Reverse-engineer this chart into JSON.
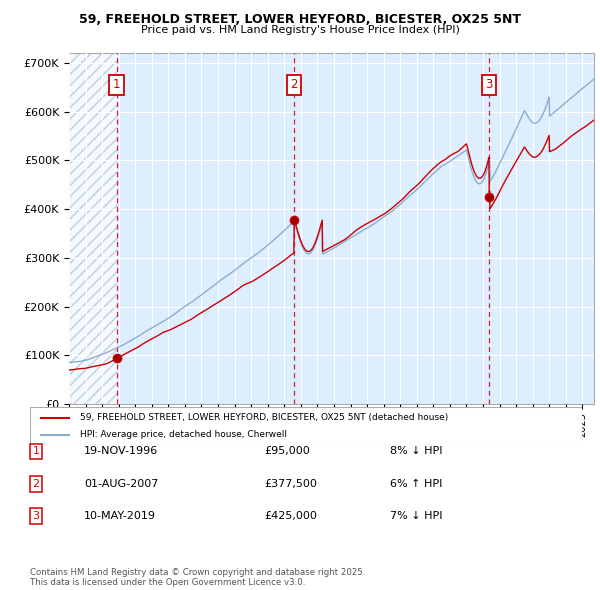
{
  "title_line1": "59, FREEHOLD STREET, LOWER HEYFORD, BICESTER, OX25 5NT",
  "title_line2": "Price paid vs. HM Land Registry's House Price Index (HPI)",
  "ylim": [
    0,
    720000
  ],
  "yticks": [
    0,
    100000,
    200000,
    300000,
    400000,
    500000,
    600000,
    700000
  ],
  "ytick_labels": [
    "£0",
    "£100K",
    "£200K",
    "£300K",
    "£400K",
    "£500K",
    "£600K",
    "£700K"
  ],
  "xlim_start": 1994.0,
  "xlim_end": 2025.7,
  "transactions": [
    {
      "num": 1,
      "date_x": 1996.88,
      "price": 95000,
      "label": "19-NOV-1996",
      "price_str": "£95,000",
      "pct": "8% ↓ HPI"
    },
    {
      "num": 2,
      "date_x": 2007.58,
      "price": 377500,
      "label": "01-AUG-2007",
      "price_str": "£377,500",
      "pct": "6% ↑ HPI"
    },
    {
      "num": 3,
      "date_x": 2019.36,
      "price": 425000,
      "label": "10-MAY-2019",
      "price_str": "£425,000",
      "pct": "7% ↓ HPI"
    }
  ],
  "legend_line1": "59, FREEHOLD STREET, LOWER HEYFORD, BICESTER, OX25 5NT (detached house)",
  "legend_line2": "HPI: Average price, detached house, Cherwell",
  "footer": "Contains HM Land Registry data © Crown copyright and database right 2025.\nThis data is licensed under the Open Government Licence v3.0.",
  "bg_color": "#ddeeff",
  "hatch_color": "#aabbcc",
  "grid_color": "#ffffff",
  "line_color_price": "#cc0000",
  "line_color_hpi": "#88aacc",
  "vline_color": "#cc0000",
  "box_color": "#cc0000"
}
